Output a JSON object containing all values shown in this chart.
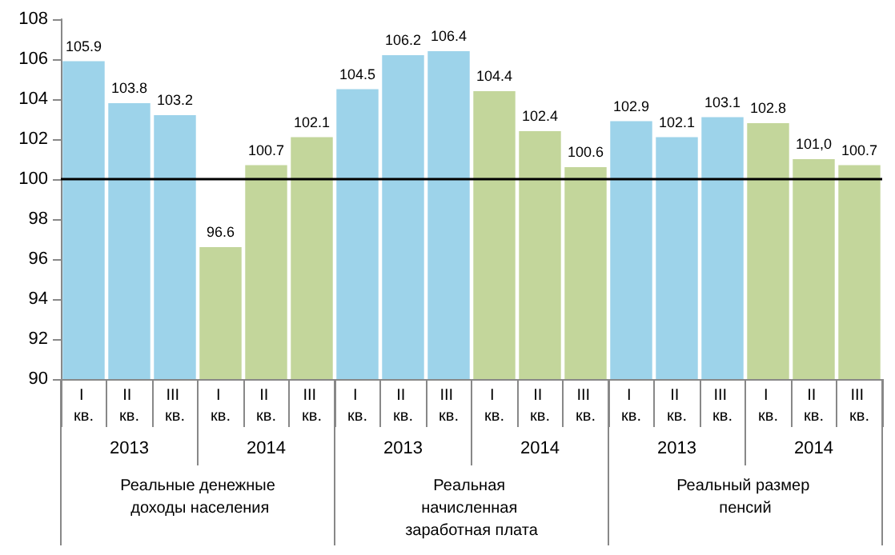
{
  "chart_data": {
    "type": "bar",
    "categories": [
      "I кв.",
      "II кв.",
      "III кв.",
      "I кв.",
      "II кв.",
      "III кв.",
      "I кв.",
      "II кв.",
      "III кв.",
      "I кв.",
      "II кв.",
      "III кв.",
      "I кв.",
      "II кв.",
      "III кв.",
      "I кв.",
      "II кв.",
      "III кв."
    ],
    "values": [
      105.9,
      103.8,
      103.2,
      96.6,
      100.7,
      102.1,
      104.5,
      106.2,
      106.4,
      104.4,
      102.4,
      100.6,
      102.9,
      102.1,
      103.1,
      102.8,
      101.0,
      100.7
    ],
    "value_labels": [
      "105.9",
      "103.8",
      "103.2",
      "96.6",
      "100.7",
      "102.1",
      "104.5",
      "106.2",
      "106.4",
      "104.4",
      "102.4",
      "100.6",
      "102.9",
      "102.1",
      "103.1",
      "102.8",
      "101,0",
      "100.7"
    ],
    "colors": [
      "#9dd3ea",
      "#9dd3ea",
      "#9dd3ea",
      "#c3d69b",
      "#c3d69b",
      "#c3d69b",
      "#9dd3ea",
      "#9dd3ea",
      "#9dd3ea",
      "#c3d69b",
      "#c3d69b",
      "#c3d69b",
      "#9dd3ea",
      "#9dd3ea",
      "#9dd3ea",
      "#c3d69b",
      "#c3d69b",
      "#c3d69b"
    ],
    "ylim": [
      90,
      108
    ],
    "yticks": [
      90,
      92,
      94,
      96,
      98,
      100,
      102,
      104,
      106,
      108
    ],
    "grid": false,
    "ref_lines": [
      {
        "axis": "y",
        "value": 100,
        "color": "#000000"
      }
    ],
    "annotations": [
      "2013",
      "2014",
      "2013",
      "2014",
      "2013",
      "2014",
      "Реальные денежные доходы населения",
      "Реальная начисленная заработная плата",
      "Реальный размер пенсий"
    ]
  }
}
